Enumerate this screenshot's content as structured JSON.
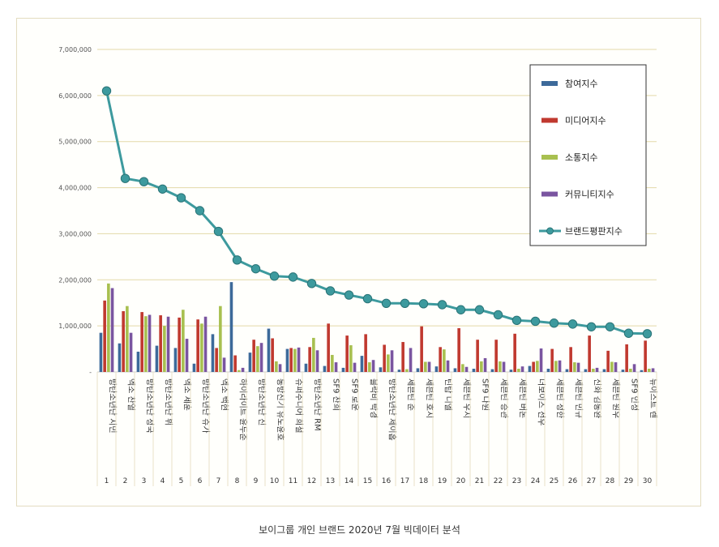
{
  "caption": "보이그룹 개인 브랜드 2020년 7월 빅데이터 분석",
  "colors": {
    "participation": "#3d6a9a",
    "media": "#c0392f",
    "communication": "#a8c050",
    "community": "#7a55a0",
    "brand": "#3d9a9e",
    "grid": "#e3d9a8",
    "legend_border": "#333333"
  },
  "chart_data": {
    "type": "bar",
    "ylim": [
      0,
      7000000
    ],
    "yticks": [
      {
        "value": 1000000,
        "label": "1,000,000"
      },
      {
        "value": 2000000,
        "label": "2,000,000"
      },
      {
        "value": 3000000,
        "label": "3,000,000"
      },
      {
        "value": 4000000,
        "label": "4,000,000"
      },
      {
        "value": 5000000,
        "label": "5,000,000"
      },
      {
        "value": 6000000,
        "label": "6,000,000"
      },
      {
        "value": 7000000,
        "label": "7,000,000"
      }
    ],
    "y_zero_label": "-",
    "grid": true,
    "legend_position": "top-right",
    "ranks": [
      "1",
      "2",
      "3",
      "4",
      "5",
      "6",
      "7",
      "8",
      "9",
      "10",
      "11",
      "12",
      "13",
      "14",
      "15",
      "16",
      "17",
      "18",
      "19",
      "20",
      "21",
      "22",
      "23",
      "24",
      "25",
      "26",
      "27",
      "28",
      "29",
      "30"
    ],
    "categories": [
      "방탄소년단 지민",
      "엑소 찬열",
      "방탄소년단 정국",
      "방탄소년단 뷔",
      "엑소 세훈",
      "방탄소년단 슈가",
      "엑소 백현",
      "하이라이트 윤두준",
      "방탄소년단 진",
      "동방신기 유노윤호",
      "슈퍼주니어 희철",
      "방탄소년단 RM",
      "SF9 찬희",
      "SF9 로운",
      "블락비 박경",
      "방탄소년단 제이홉",
      "세븐틴 준",
      "세븐틴 호시",
      "틴탑 니엘",
      "세븐틴 우지",
      "SF9 다원",
      "세븐틴 승관",
      "세븐틴 버논",
      "더보이즈 선우",
      "세븐틴 정한",
      "세븐틴 민규",
      "신화 김동완",
      "세븐틴 원우",
      "SF9 인성",
      "뉴이스트 렌"
    ],
    "series": [
      {
        "name": "참여지수",
        "type": "bar",
        "color_key": "participation",
        "values": [
          850000,
          620000,
          440000,
          570000,
          520000,
          180000,
          820000,
          1950000,
          420000,
          940000,
          500000,
          180000,
          130000,
          90000,
          350000,
          100000,
          50000,
          80000,
          120000,
          80000,
          70000,
          60000,
          50000,
          130000,
          70000,
          60000,
          60000,
          60000,
          50000,
          40000
        ]
      },
      {
        "name": "미디어지수",
        "type": "bar",
        "color_key": "media",
        "values": [
          1550000,
          1320000,
          1300000,
          1230000,
          1180000,
          1140000,
          520000,
          360000,
          700000,
          730000,
          520000,
          540000,
          1050000,
          790000,
          820000,
          590000,
          650000,
          990000,
          540000,
          950000,
          700000,
          700000,
          830000,
          220000,
          500000,
          540000,
          790000,
          460000,
          600000,
          680000
        ]
      },
      {
        "name": "소통지수",
        "type": "bar",
        "color_key": "communication",
        "values": [
          1920000,
          1430000,
          1210000,
          1000000,
          1350000,
          1050000,
          1430000,
          40000,
          560000,
          230000,
          500000,
          740000,
          370000,
          580000,
          210000,
          380000,
          60000,
          220000,
          490000,
          170000,
          230000,
          230000,
          70000,
          240000,
          240000,
          210000,
          70000,
          220000,
          70000,
          70000
        ]
      },
      {
        "name": "커뮤니티지수",
        "type": "bar",
        "color_key": "community",
        "values": [
          1820000,
          850000,
          1240000,
          1200000,
          720000,
          1200000,
          310000,
          90000,
          630000,
          170000,
          530000,
          470000,
          210000,
          200000,
          260000,
          470000,
          520000,
          220000,
          250000,
          110000,
          300000,
          220000,
          120000,
          510000,
          250000,
          200000,
          90000,
          210000,
          170000,
          80000
        ]
      },
      {
        "name": "브랜드평판지수",
        "type": "line",
        "color_key": "brand",
        "values": [
          6100000,
          4200000,
          4130000,
          3970000,
          3780000,
          3500000,
          3050000,
          2430000,
          2240000,
          2080000,
          2060000,
          1920000,
          1760000,
          1670000,
          1590000,
          1490000,
          1490000,
          1480000,
          1460000,
          1350000,
          1350000,
          1240000,
          1120000,
          1100000,
          1060000,
          1040000,
          980000,
          980000,
          840000,
          830000
        ]
      }
    ]
  }
}
